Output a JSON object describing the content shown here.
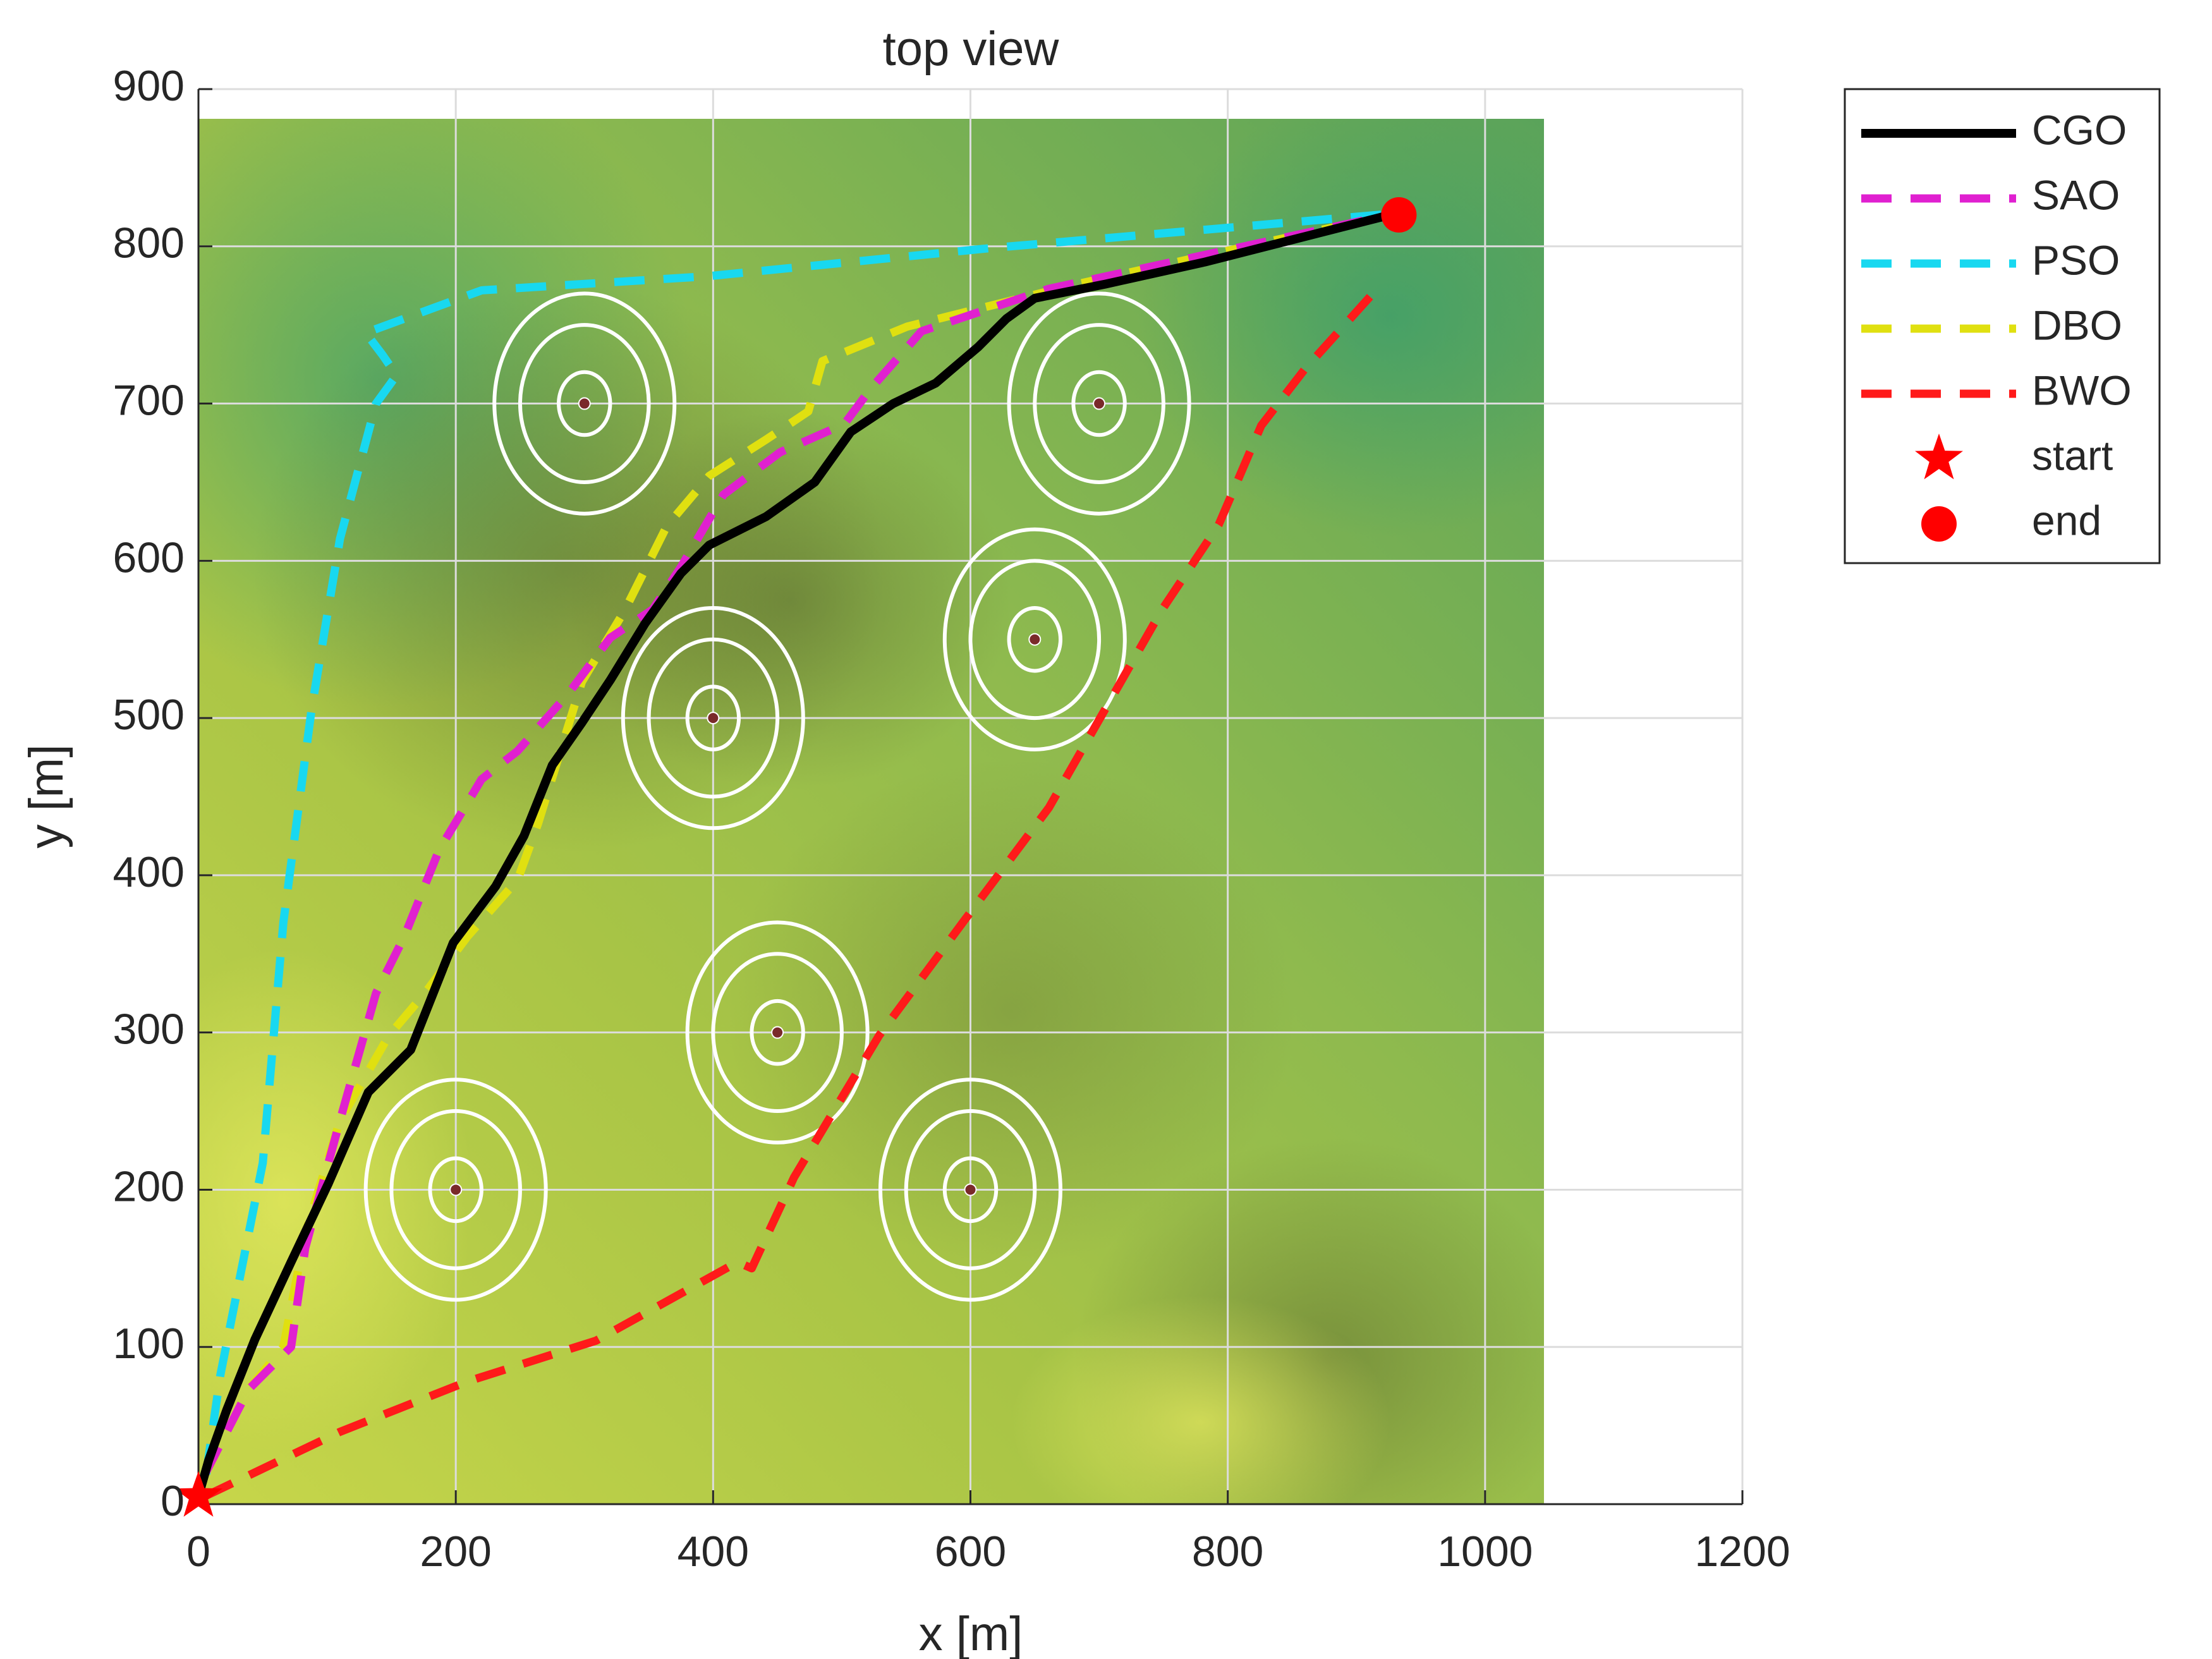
{
  "chart_data": {
    "type": "line",
    "title": "top view",
    "x_label": "x [m]",
    "y_label": "y [m]",
    "xlim": [
      0,
      1200
    ],
    "ylim": [
      0,
      900
    ],
    "xticks": [
      0,
      200,
      400,
      600,
      800,
      1000,
      1200
    ],
    "yticks": [
      0,
      100,
      200,
      300,
      400,
      500,
      600,
      700,
      800,
      900
    ],
    "grid": true,
    "legend": "outside-right",
    "series": [
      {
        "name": "CGO",
        "color": "#000000",
        "dash": false,
        "x": [
          0,
          8,
          22,
          44,
          72,
          101,
          132,
          165,
          198,
          231,
          253,
          275,
          298,
          320,
          347,
          375,
          397,
          441,
          479,
          507,
          540,
          573,
          606,
          628,
          650,
          705,
          782,
          931
        ],
        "y": [
          5,
          28,
          60,
          105,
          154,
          204,
          262,
          289,
          357,
          393,
          425,
          470,
          497,
          524,
          560,
          592,
          610,
          628,
          650,
          682,
          700,
          713,
          736,
          754,
          767,
          776,
          790,
          821
        ]
      },
      {
        "name": "SAO",
        "color": "#e020d0",
        "dash": true,
        "x": [
          5,
          39,
          72,
          83,
          110,
          138,
          160,
          187,
          220,
          248,
          287,
          320,
          353,
          375,
          408,
          452,
          502,
          523,
          562,
          661,
          931
        ],
        "y": [
          19,
          73,
          100,
          163,
          244,
          325,
          361,
          416,
          461,
          479,
          515,
          551,
          569,
          596,
          642,
          669,
          687,
          710,
          746,
          773,
          821
        ]
      },
      {
        "name": "PSO",
        "color": "#18d8f0",
        "dash": true,
        "x": [
          6,
          17,
          50,
          66,
          88,
          110,
          138,
          154,
          143,
          130,
          220,
          396,
          617,
          931
        ],
        "y": [
          19,
          82,
          217,
          370,
          506,
          614,
          700,
          718,
          731,
          745,
          772,
          781,
          799,
          821
        ]
      },
      {
        "name": "DBO",
        "color": "#e0e010",
        "dash": true,
        "x": [
          5,
          39,
          66,
          83,
          110,
          148,
          176,
          209,
          248,
          264,
          281,
          298,
          331,
          364,
          397,
          441,
          474,
          485,
          551,
          683,
          931
        ],
        "y": [
          19,
          73,
          100,
          172,
          244,
          298,
          325,
          361,
          397,
          433,
          478,
          523,
          568,
          622,
          654,
          677,
          695,
          727,
          749,
          776,
          821
        ]
      },
      {
        "name": "BWO",
        "color": "#ff1a1a",
        "dash": true,
        "x": [
          5,
          110,
          209,
          309,
          419,
          430,
          463,
          529,
          595,
          661,
          705,
          749,
          793,
          826,
          860,
          915
        ],
        "y": [
          5,
          46,
          78,
          104,
          154,
          150,
          208,
          298,
          371,
          443,
          506,
          569,
          623,
          686,
          722,
          772
        ]
      }
    ],
    "markers": [
      {
        "name": "start",
        "shape": "star",
        "color": "#ff0000",
        "x": 0,
        "y": 5
      },
      {
        "name": "end",
        "shape": "circle",
        "color": "#ff0000",
        "x": 933,
        "y": 820
      }
    ],
    "threats": {
      "x": [
        300,
        700,
        650,
        400,
        450,
        200,
        600
      ],
      "y": [
        700,
        700,
        550,
        500,
        300,
        200,
        200
      ],
      "radii": [
        20,
        50,
        70
      ]
    }
  }
}
